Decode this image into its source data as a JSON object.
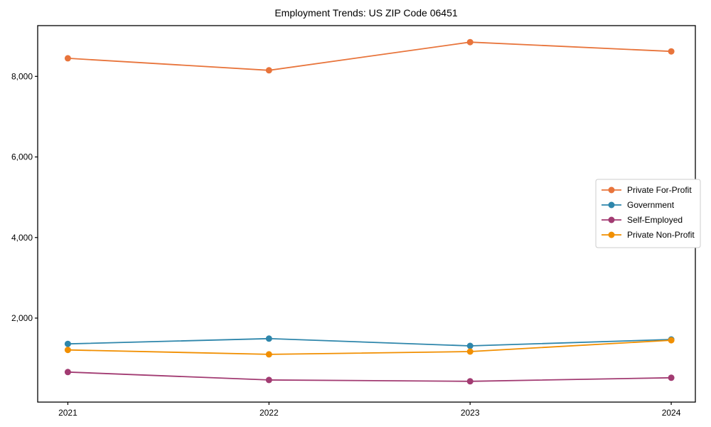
{
  "chart_data": {
    "type": "line",
    "title": "Employment Trends: US ZIP Code 06451",
    "xlabel": "",
    "ylabel": "",
    "x": [
      2021,
      2022,
      2023,
      2024
    ],
    "x_tick_labels": [
      "2021",
      "2022",
      "2023",
      "2024"
    ],
    "y_ticks": [
      2000,
      4000,
      6000,
      8000
    ],
    "y_tick_labels": [
      "2,000",
      "4,000",
      "6,000",
      "8,000"
    ],
    "xlim": [
      2020.85,
      2024.12
    ],
    "ylim": [
      -85,
      9260
    ],
    "grid": false,
    "marker": "circle",
    "legend_position": "center-right",
    "axis_color": "#000000",
    "background_color": "#ffffff",
    "legend_border_color": "#cccccc",
    "series": [
      {
        "name": "Private For-Profit",
        "color": "#e8743b",
        "values": [
          8450,
          8150,
          8850,
          8620
        ]
      },
      {
        "name": "Government",
        "color": "#2e86ab",
        "values": [
          1360,
          1490,
          1310,
          1470
        ]
      },
      {
        "name": "Self-Employed",
        "color": "#a23b72",
        "values": [
          660,
          465,
          430,
          520
        ]
      },
      {
        "name": "Private Non-Profit",
        "color": "#f18f01",
        "values": [
          1210,
          1100,
          1170,
          1450
        ]
      }
    ]
  }
}
